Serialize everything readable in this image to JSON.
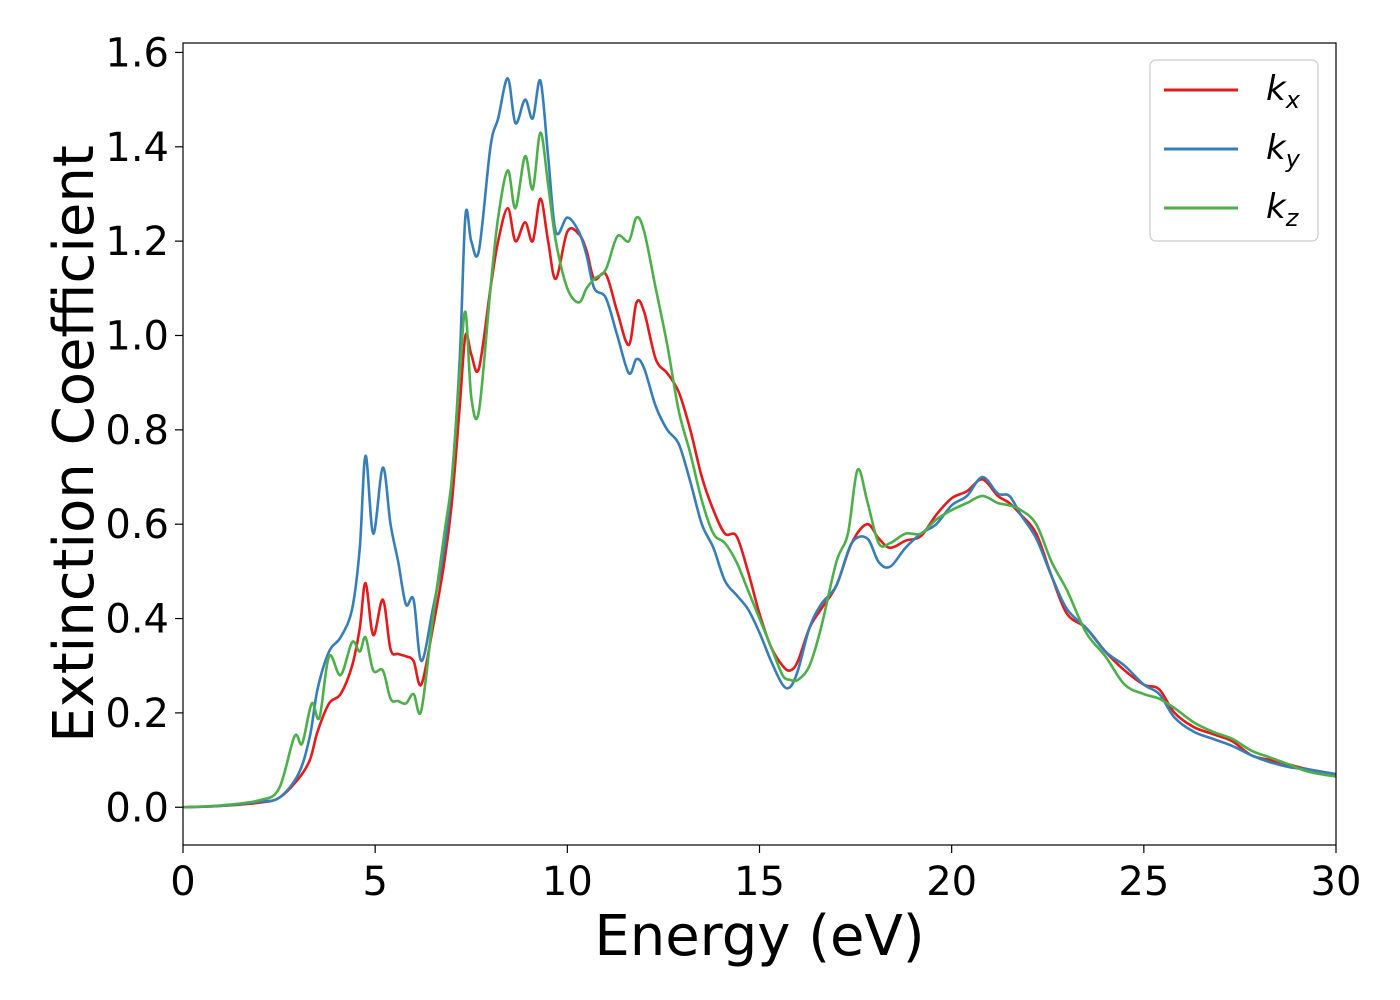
{
  "chart_data": {
    "type": "line",
    "xlabel": "Energy (eV)",
    "ylabel": "Extinction Coefficient",
    "xlim": [
      0,
      30
    ],
    "ylim": [
      -0.08,
      1.62
    ],
    "xticks": [
      0,
      5,
      10,
      15,
      20,
      25,
      30
    ],
    "xtick_labels": [
      "0",
      "5",
      "10",
      "15",
      "20",
      "25",
      "30"
    ],
    "yticks": [
      0.0,
      0.2,
      0.4,
      0.6,
      0.8,
      1.0,
      1.2,
      1.4,
      1.6
    ],
    "ytick_labels": [
      "0.0",
      "0.2",
      "0.4",
      "0.6",
      "0.8",
      "1.0",
      "1.2",
      "1.4",
      "1.6"
    ],
    "grid": false,
    "legend_position": "top-right",
    "series": [
      {
        "name": "k_x",
        "legend_base": "k",
        "legend_sub": "x",
        "color": "#e41a1c",
        "points": [
          [
            0,
            0
          ],
          [
            1,
            0.003
          ],
          [
            2,
            0.01
          ],
          [
            2.5,
            0.02
          ],
          [
            3,
            0.06
          ],
          [
            3.3,
            0.1
          ],
          [
            3.5,
            0.16
          ],
          [
            3.8,
            0.22
          ],
          [
            4.1,
            0.24
          ],
          [
            4.4,
            0.3
          ],
          [
            4.6,
            0.38
          ],
          [
            4.75,
            0.475
          ],
          [
            4.95,
            0.365
          ],
          [
            5.2,
            0.44
          ],
          [
            5.4,
            0.335
          ],
          [
            5.6,
            0.325
          ],
          [
            5.8,
            0.32
          ],
          [
            6.0,
            0.31
          ],
          [
            6.2,
            0.26
          ],
          [
            6.5,
            0.38
          ],
          [
            6.8,
            0.52
          ],
          [
            7.0,
            0.65
          ],
          [
            7.2,
            0.85
          ],
          [
            7.35,
            1.0
          ],
          [
            7.5,
            0.96
          ],
          [
            7.7,
            0.93
          ],
          [
            8.0,
            1.1
          ],
          [
            8.2,
            1.2
          ],
          [
            8.45,
            1.27
          ],
          [
            8.65,
            1.2
          ],
          [
            8.9,
            1.24
          ],
          [
            9.1,
            1.2
          ],
          [
            9.3,
            1.29
          ],
          [
            9.5,
            1.2
          ],
          [
            9.7,
            1.12
          ],
          [
            10.0,
            1.22
          ],
          [
            10.3,
            1.215
          ],
          [
            10.5,
            1.18
          ],
          [
            10.7,
            1.12
          ],
          [
            11.0,
            1.13
          ],
          [
            11.3,
            1.05
          ],
          [
            11.6,
            0.98
          ],
          [
            11.8,
            1.07
          ],
          [
            12.0,
            1.05
          ],
          [
            12.3,
            0.95
          ],
          [
            12.6,
            0.92
          ],
          [
            12.9,
            0.88
          ],
          [
            13.2,
            0.8
          ],
          [
            13.5,
            0.7
          ],
          [
            13.8,
            0.63
          ],
          [
            14.1,
            0.58
          ],
          [
            14.4,
            0.575
          ],
          [
            14.7,
            0.5
          ],
          [
            15.0,
            0.41
          ],
          [
            15.3,
            0.34
          ],
          [
            15.6,
            0.3
          ],
          [
            15.8,
            0.29
          ],
          [
            16.0,
            0.31
          ],
          [
            16.3,
            0.38
          ],
          [
            16.6,
            0.42
          ],
          [
            17.0,
            0.47
          ],
          [
            17.4,
            0.56
          ],
          [
            17.8,
            0.6
          ],
          [
            18.1,
            0.57
          ],
          [
            18.4,
            0.55
          ],
          [
            18.8,
            0.565
          ],
          [
            19.2,
            0.575
          ],
          [
            19.6,
            0.62
          ],
          [
            20.0,
            0.655
          ],
          [
            20.4,
            0.67
          ],
          [
            20.8,
            0.695
          ],
          [
            21.2,
            0.66
          ],
          [
            21.5,
            0.645
          ],
          [
            21.8,
            0.62
          ],
          [
            22.2,
            0.58
          ],
          [
            22.6,
            0.49
          ],
          [
            23.0,
            0.41
          ],
          [
            23.5,
            0.38
          ],
          [
            24.0,
            0.33
          ],
          [
            24.5,
            0.29
          ],
          [
            25.0,
            0.26
          ],
          [
            25.4,
            0.25
          ],
          [
            25.8,
            0.2
          ],
          [
            26.3,
            0.17
          ],
          [
            26.8,
            0.155
          ],
          [
            27.3,
            0.14
          ],
          [
            27.8,
            0.11
          ],
          [
            28.3,
            0.1
          ],
          [
            28.8,
            0.09
          ],
          [
            29.3,
            0.08
          ],
          [
            30,
            0.07
          ]
        ]
      },
      {
        "name": "k_y",
        "legend_base": "k",
        "legend_sub": "y",
        "color": "#377eb8",
        "points": [
          [
            0,
            0
          ],
          [
            1,
            0.003
          ],
          [
            2,
            0.012
          ],
          [
            2.5,
            0.02
          ],
          [
            3,
            0.07
          ],
          [
            3.3,
            0.15
          ],
          [
            3.5,
            0.25
          ],
          [
            3.8,
            0.33
          ],
          [
            4.1,
            0.36
          ],
          [
            4.4,
            0.42
          ],
          [
            4.6,
            0.55
          ],
          [
            4.75,
            0.745
          ],
          [
            4.95,
            0.58
          ],
          [
            5.2,
            0.72
          ],
          [
            5.4,
            0.6
          ],
          [
            5.6,
            0.52
          ],
          [
            5.8,
            0.43
          ],
          [
            6.0,
            0.44
          ],
          [
            6.2,
            0.31
          ],
          [
            6.5,
            0.42
          ],
          [
            6.8,
            0.55
          ],
          [
            7.0,
            0.7
          ],
          [
            7.2,
            0.95
          ],
          [
            7.35,
            1.255
          ],
          [
            7.5,
            1.2
          ],
          [
            7.7,
            1.18
          ],
          [
            8.0,
            1.4
          ],
          [
            8.2,
            1.46
          ],
          [
            8.45,
            1.545
          ],
          [
            8.65,
            1.45
          ],
          [
            8.9,
            1.5
          ],
          [
            9.1,
            1.46
          ],
          [
            9.3,
            1.54
          ],
          [
            9.5,
            1.38
          ],
          [
            9.7,
            1.22
          ],
          [
            10.0,
            1.25
          ],
          [
            10.3,
            1.22
          ],
          [
            10.5,
            1.17
          ],
          [
            10.7,
            1.1
          ],
          [
            11.0,
            1.08
          ],
          [
            11.3,
            1.0
          ],
          [
            11.6,
            0.92
          ],
          [
            11.8,
            0.95
          ],
          [
            12.0,
            0.93
          ],
          [
            12.3,
            0.85
          ],
          [
            12.6,
            0.8
          ],
          [
            12.9,
            0.77
          ],
          [
            13.2,
            0.69
          ],
          [
            13.5,
            0.6
          ],
          [
            13.8,
            0.55
          ],
          [
            14.1,
            0.48
          ],
          [
            14.4,
            0.45
          ],
          [
            14.7,
            0.42
          ],
          [
            15.0,
            0.37
          ],
          [
            15.3,
            0.31
          ],
          [
            15.6,
            0.26
          ],
          [
            15.8,
            0.255
          ],
          [
            16.0,
            0.29
          ],
          [
            16.3,
            0.38
          ],
          [
            16.6,
            0.43
          ],
          [
            17.0,
            0.47
          ],
          [
            17.4,
            0.56
          ],
          [
            17.8,
            0.57
          ],
          [
            18.1,
            0.52
          ],
          [
            18.4,
            0.51
          ],
          [
            18.8,
            0.55
          ],
          [
            19.2,
            0.58
          ],
          [
            19.6,
            0.6
          ],
          [
            20.0,
            0.64
          ],
          [
            20.4,
            0.66
          ],
          [
            20.8,
            0.7
          ],
          [
            21.2,
            0.665
          ],
          [
            21.5,
            0.66
          ],
          [
            21.8,
            0.62
          ],
          [
            22.2,
            0.57
          ],
          [
            22.6,
            0.49
          ],
          [
            23.0,
            0.42
          ],
          [
            23.5,
            0.38
          ],
          [
            24.0,
            0.33
          ],
          [
            24.5,
            0.3
          ],
          [
            25.0,
            0.26
          ],
          [
            25.4,
            0.24
          ],
          [
            25.8,
            0.19
          ],
          [
            26.3,
            0.16
          ],
          [
            26.8,
            0.145
          ],
          [
            27.3,
            0.13
          ],
          [
            27.8,
            0.11
          ],
          [
            28.3,
            0.095
          ],
          [
            28.8,
            0.085
          ],
          [
            29.3,
            0.08
          ],
          [
            30,
            0.07
          ]
        ]
      },
      {
        "name": "k_z",
        "legend_base": "k",
        "legend_sub": "z",
        "color": "#4daf4a",
        "points": [
          [
            0,
            0
          ],
          [
            1,
            0.004
          ],
          [
            2,
            0.015
          ],
          [
            2.5,
            0.04
          ],
          [
            2.9,
            0.15
          ],
          [
            3.1,
            0.135
          ],
          [
            3.35,
            0.22
          ],
          [
            3.55,
            0.19
          ],
          [
            3.8,
            0.32
          ],
          [
            4.1,
            0.28
          ],
          [
            4.4,
            0.35
          ],
          [
            4.6,
            0.33
          ],
          [
            4.75,
            0.36
          ],
          [
            4.95,
            0.29
          ],
          [
            5.2,
            0.29
          ],
          [
            5.4,
            0.23
          ],
          [
            5.6,
            0.225
          ],
          [
            5.8,
            0.22
          ],
          [
            6.0,
            0.24
          ],
          [
            6.2,
            0.205
          ],
          [
            6.5,
            0.4
          ],
          [
            6.8,
            0.58
          ],
          [
            7.0,
            0.7
          ],
          [
            7.2,
            0.92
          ],
          [
            7.35,
            1.05
          ],
          [
            7.5,
            0.87
          ],
          [
            7.7,
            0.84
          ],
          [
            8.0,
            1.1
          ],
          [
            8.2,
            1.25
          ],
          [
            8.45,
            1.35
          ],
          [
            8.65,
            1.27
          ],
          [
            8.9,
            1.38
          ],
          [
            9.1,
            1.31
          ],
          [
            9.3,
            1.43
          ],
          [
            9.5,
            1.32
          ],
          [
            9.7,
            1.2
          ],
          [
            10.0,
            1.1
          ],
          [
            10.3,
            1.07
          ],
          [
            10.5,
            1.1
          ],
          [
            10.7,
            1.12
          ],
          [
            11.0,
            1.14
          ],
          [
            11.3,
            1.21
          ],
          [
            11.6,
            1.2
          ],
          [
            11.8,
            1.25
          ],
          [
            12.0,
            1.22
          ],
          [
            12.3,
            1.1
          ],
          [
            12.6,
            0.98
          ],
          [
            12.9,
            0.84
          ],
          [
            13.2,
            0.75
          ],
          [
            13.5,
            0.65
          ],
          [
            13.8,
            0.58
          ],
          [
            14.1,
            0.56
          ],
          [
            14.4,
            0.52
          ],
          [
            14.7,
            0.46
          ],
          [
            15.0,
            0.4
          ],
          [
            15.3,
            0.34
          ],
          [
            15.6,
            0.28
          ],
          [
            15.8,
            0.27
          ],
          [
            16.0,
            0.27
          ],
          [
            16.3,
            0.3
          ],
          [
            16.6,
            0.38
          ],
          [
            17.0,
            0.52
          ],
          [
            17.3,
            0.58
          ],
          [
            17.55,
            0.715
          ],
          [
            17.8,
            0.65
          ],
          [
            18.1,
            0.56
          ],
          [
            18.4,
            0.56
          ],
          [
            18.8,
            0.58
          ],
          [
            19.2,
            0.58
          ],
          [
            19.6,
            0.61
          ],
          [
            20.0,
            0.63
          ],
          [
            20.4,
            0.645
          ],
          [
            20.8,
            0.66
          ],
          [
            21.2,
            0.645
          ],
          [
            21.5,
            0.64
          ],
          [
            21.8,
            0.63
          ],
          [
            22.2,
            0.6
          ],
          [
            22.6,
            0.52
          ],
          [
            23.0,
            0.46
          ],
          [
            23.5,
            0.37
          ],
          [
            24.0,
            0.32
          ],
          [
            24.5,
            0.26
          ],
          [
            25.0,
            0.24
          ],
          [
            25.4,
            0.23
          ],
          [
            25.8,
            0.21
          ],
          [
            26.3,
            0.18
          ],
          [
            26.8,
            0.16
          ],
          [
            27.3,
            0.145
          ],
          [
            27.8,
            0.12
          ],
          [
            28.3,
            0.105
          ],
          [
            28.8,
            0.09
          ],
          [
            29.3,
            0.075
          ],
          [
            30,
            0.065
          ]
        ]
      }
    ]
  }
}
